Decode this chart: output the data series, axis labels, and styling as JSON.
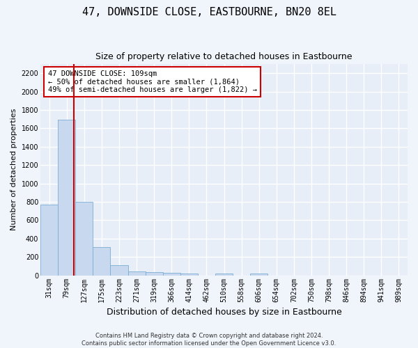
{
  "title": "47, DOWNSIDE CLOSE, EASTBOURNE, BN20 8EL",
  "subtitle": "Size of property relative to detached houses in Eastbourne",
  "xlabel": "Distribution of detached houses by size in Eastbourne",
  "ylabel": "Number of detached properties",
  "footer_line1": "Contains HM Land Registry data © Crown copyright and database right 2024.",
  "footer_line2": "Contains public sector information licensed under the Open Government Licence v3.0.",
  "bin_labels": [
    "31sqm",
    "79sqm",
    "127sqm",
    "175sqm",
    "223sqm",
    "271sqm",
    "319sqm",
    "366sqm",
    "414sqm",
    "462sqm",
    "510sqm",
    "558sqm",
    "606sqm",
    "654sqm",
    "702sqm",
    "750sqm",
    "798sqm",
    "846sqm",
    "894sqm",
    "941sqm",
    "989sqm"
  ],
  "bin_values": [
    770,
    1690,
    800,
    305,
    110,
    45,
    35,
    25,
    20,
    0,
    20,
    0,
    20,
    0,
    0,
    0,
    0,
    0,
    0,
    0,
    0
  ],
  "bar_color": "#c8d8ee",
  "bar_edge_color": "#7aaed4",
  "bar_width": 1.0,
  "ylim": [
    0,
    2300
  ],
  "yticks": [
    0,
    200,
    400,
    600,
    800,
    1000,
    1200,
    1400,
    1600,
    1800,
    2000,
    2200
  ],
  "red_line_x": 1.4,
  "red_line_color": "#cc0000",
  "annotation_text": "47 DOWNSIDE CLOSE: 109sqm\n← 50% of detached houses are smaller (1,864)\n49% of semi-detached houses are larger (1,822) →",
  "annotation_box_color": "#ffffff",
  "annotation_box_edge": "#cc0000",
  "fig_bg": "#f0f4fb",
  "plot_bg": "#e8eef8",
  "grid_color": "#ffffff",
  "title_fontsize": 11,
  "subtitle_fontsize": 9,
  "ylabel_fontsize": 8,
  "xlabel_fontsize": 9,
  "tick_fontsize": 7,
  "annot_fontsize": 7.5,
  "footer_fontsize": 6
}
